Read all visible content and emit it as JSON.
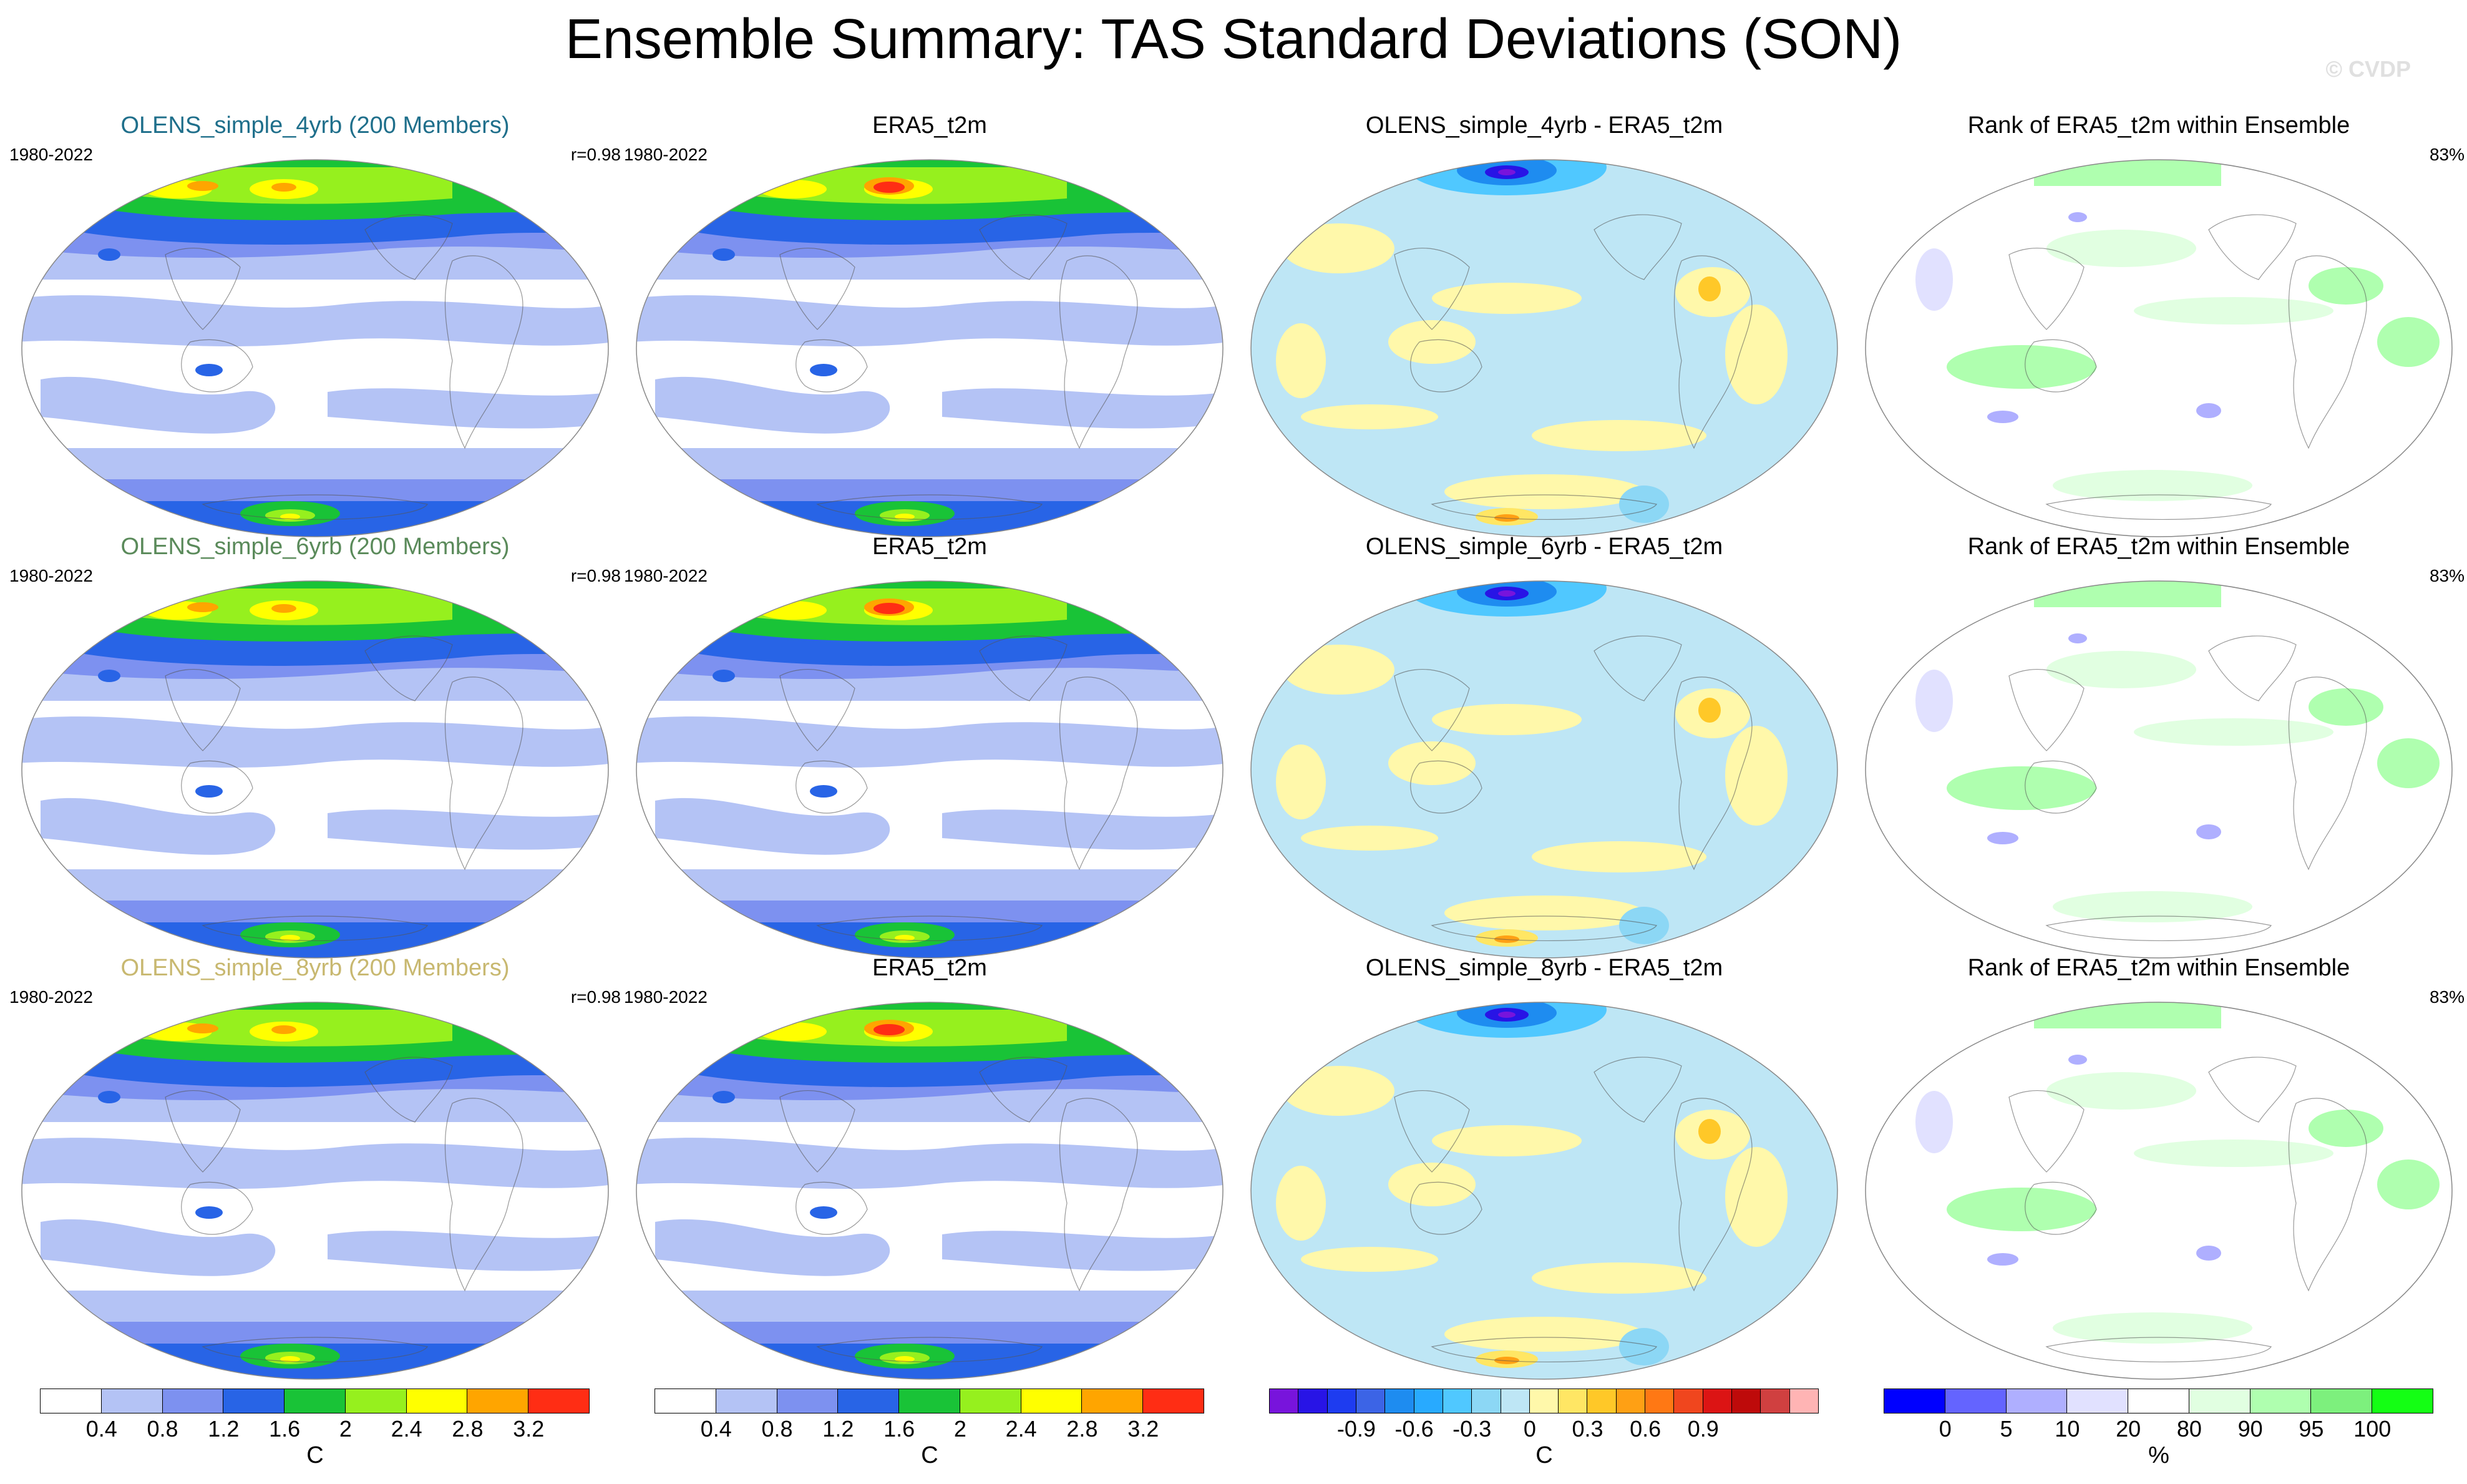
{
  "title": "Ensemble Summary: TAS Standard Deviations (SON)",
  "copyright": "© CVDP",
  "rows": [
    {
      "ensemble_title": "OLENS_simple_4yrb (200 Members)",
      "ensemble_color": "#1f6f8b",
      "period": "1980-2022",
      "corr": "r=0.98",
      "obs_title": "ERA5_t2m",
      "obs_period": "1980-2022",
      "diff_title": "OLENS_simple_4yrb - ERA5_t2m",
      "rank_title": "Rank of ERA5_t2m within Ensemble",
      "rank_pct": "83%"
    },
    {
      "ensemble_title": "OLENS_simple_6yrb (200 Members)",
      "ensemble_color": "#5a8a5a",
      "period": "1980-2022",
      "corr": "r=0.98",
      "obs_title": "ERA5_t2m",
      "obs_period": "1980-2022",
      "diff_title": "OLENS_simple_6yrb - ERA5_t2m",
      "rank_title": "Rank of ERA5_t2m within Ensemble",
      "rank_pct": "83%"
    },
    {
      "ensemble_title": "OLENS_simple_8yrb (200 Members)",
      "ensemble_color": "#c8b870",
      "period": "1980-2022",
      "corr": "r=0.98",
      "obs_title": "ERA5_t2m",
      "obs_period": "1980-2022",
      "diff_title": "OLENS_simple_8yrb - ERA5_t2m",
      "rank_title": "Rank of ERA5_t2m within Ensemble",
      "rank_pct": "83%"
    }
  ],
  "colorbars": [
    {
      "unit": "C",
      "colors": [
        "#ffffff",
        "#b4c3f5",
        "#7d91f0",
        "#2864e6",
        "#19c337",
        "#96f01e",
        "#ffff00",
        "#ffa500",
        "#ff2d14"
      ],
      "ticks": [
        "0.4",
        "0.8",
        "1.2",
        "1.6",
        "2",
        "2.4",
        "2.8",
        "3.2"
      ]
    },
    {
      "unit": "C",
      "colors": [
        "#ffffff",
        "#b4c3f5",
        "#7d91f0",
        "#2864e6",
        "#19c337",
        "#96f01e",
        "#ffff00",
        "#ffa500",
        "#ff2d14"
      ],
      "ticks": [
        "0.4",
        "0.8",
        "1.2",
        "1.6",
        "2",
        "2.4",
        "2.8",
        "3.2"
      ]
    },
    {
      "unit": "C",
      "colors": [
        "#7814dc",
        "#2814e6",
        "#1e3cf0",
        "#3c64e6",
        "#1e8cf0",
        "#28aaff",
        "#50c8ff",
        "#8cd7f5",
        "#bee6f5",
        "#fff8aa",
        "#ffe664",
        "#ffc828",
        "#ffa014",
        "#ff7814",
        "#f0461e",
        "#dc1414",
        "#be0a0a",
        "#d04040",
        "#ffb4b4"
      ],
      "ticks": [
        "-0.9",
        "-0.6",
        "-0.3",
        "0",
        "0.3",
        "0.6",
        "0.9"
      ]
    },
    {
      "unit": "%",
      "colors": [
        "#0000ff",
        "#6464ff",
        "#afafff",
        "#e1e1ff",
        "#ffffff",
        "#e1ffe1",
        "#afffaf",
        "#7df07d",
        "#14ff14"
      ],
      "ticks": [
        "0",
        "5",
        "10",
        "20",
        "80",
        "90",
        "95",
        "100"
      ]
    }
  ]
}
